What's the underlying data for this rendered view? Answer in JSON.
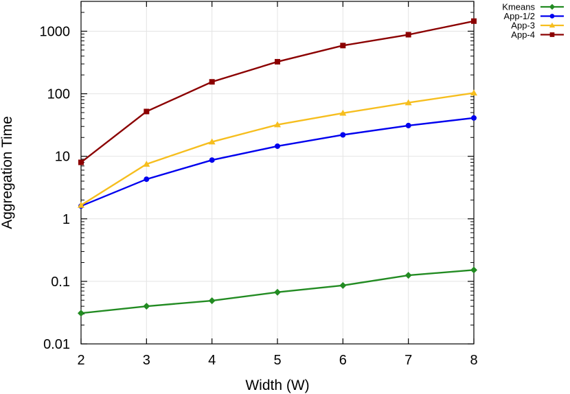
{
  "chart_data": {
    "type": "line",
    "title": "",
    "xlabel": "Width (W)",
    "ylabel": "Aggregation Time",
    "x": [
      2,
      3,
      4,
      5,
      6,
      7,
      8
    ],
    "xlim": [
      2,
      8
    ],
    "ylim": [
      0.01,
      3000
    ],
    "yscale": "log",
    "x_ticks": [
      "2",
      "3",
      "4",
      "5",
      "6",
      "7",
      "8"
    ],
    "y_ticks": [
      {
        "value": 0.01,
        "label": "0.01"
      },
      {
        "value": 0.1,
        "label": "0.1"
      },
      {
        "value": 1,
        "label": "1"
      },
      {
        "value": 10,
        "label": "10"
      },
      {
        "value": 100,
        "label": "100"
      },
      {
        "value": 1000,
        "label": "1000"
      }
    ],
    "grid": true,
    "legend_position": "outside-top-right",
    "series": [
      {
        "name": "Kmeans",
        "color": "#228B22",
        "marker": "diamond",
        "values": [
          0.031,
          0.04,
          0.049,
          0.067,
          0.086,
          0.125,
          0.152
        ]
      },
      {
        "name": "App-1/2",
        "color": "#0000EE",
        "marker": "circle",
        "values": [
          1.6,
          4.3,
          8.7,
          14.5,
          22,
          31,
          41
        ]
      },
      {
        "name": "App-3",
        "color": "#F6BE1E",
        "marker": "triangle",
        "values": [
          1.65,
          7.5,
          17,
          32,
          49,
          72,
          103
        ]
      },
      {
        "name": "App-4",
        "color": "#8B0000",
        "marker": "square",
        "values": [
          8,
          52,
          155,
          325,
          590,
          880,
          1450
        ]
      }
    ]
  }
}
